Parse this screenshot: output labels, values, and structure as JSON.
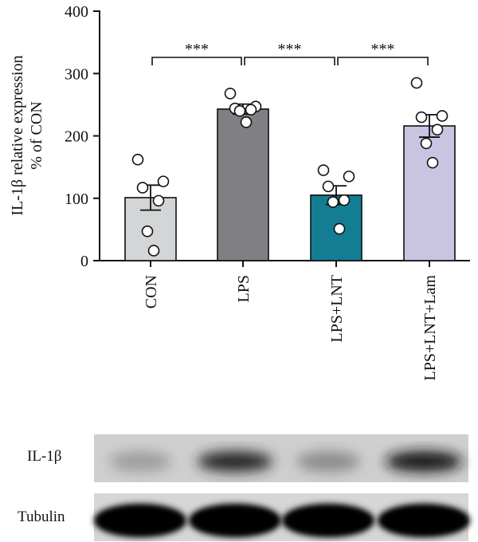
{
  "chart_data": {
    "type": "bar",
    "ylabel_line1": "IL-1β relative expression",
    "ylabel_line2": "% of CON",
    "ylim": [
      0,
      400
    ],
    "yticks": [
      0,
      100,
      200,
      300,
      400
    ],
    "categories": [
      "CON",
      "LPS",
      "LPS+LNT",
      "LPS+LNT+Lam"
    ],
    "values": [
      101,
      243,
      105,
      216
    ],
    "errors": [
      20,
      8,
      15,
      18
    ],
    "bar_colors": [
      "#d4d5d7",
      "#808084",
      "#137d94",
      "#c8c4e2"
    ],
    "points": [
      [
        162,
        127,
        117,
        96,
        47,
        16
      ],
      [
        268,
        247,
        244,
        242,
        240,
        222
      ],
      [
        145,
        135,
        119,
        97,
        94,
        51
      ],
      [
        285,
        232,
        230,
        210,
        188,
        157
      ]
    ],
    "comparisons": [
      {
        "from": 0,
        "to": 1,
        "y": 325,
        "label": "***"
      },
      {
        "from": 1,
        "to": 2,
        "y": 325,
        "label": "***"
      },
      {
        "from": 2,
        "to": 3,
        "y": 325,
        "label": "***"
      }
    ]
  },
  "blot": {
    "rows": [
      {
        "label": "IL-1β",
        "intensities": [
          0.38,
          0.85,
          0.45,
          0.9
        ]
      },
      {
        "label": "Tubulin",
        "intensities": [
          1.0,
          1.0,
          1.0,
          1.0
        ]
      }
    ]
  }
}
